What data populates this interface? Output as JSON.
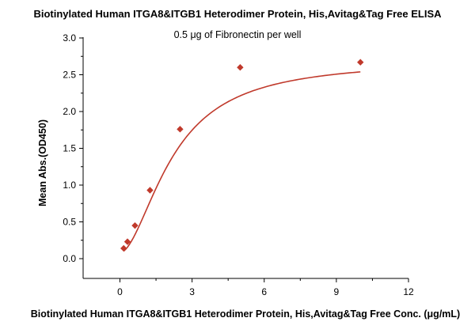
{
  "chart_data": {
    "type": "scatter",
    "title": "Biotinylated Human ITGA8&ITGB1 Heterodimer Protein, His,Avitag&Tag Free ELISA",
    "subtitle": "0.5 μg of Fibronectin per well",
    "xlabel": "Biotinylated Human ITGA8&ITGB1 Heterodimer Protein, His,Avitag&Tag Free Conc. (μg/mL)",
    "ylabel": "Mean Abs.(OD450)",
    "xlim": [
      -1,
      12
    ],
    "ylim": [
      -0.2,
      3.0
    ],
    "xticks": [
      0,
      3,
      6,
      9,
      12
    ],
    "yticks": [
      0.0,
      0.5,
      1.0,
      1.5,
      2.0,
      2.5,
      3.0
    ],
    "grid": false,
    "series": [
      {
        "x": [
          0.156,
          0.313,
          0.625,
          1.25,
          2.5,
          5.0,
          10.0
        ],
        "y": [
          0.14,
          0.23,
          0.45,
          0.93,
          1.76,
          2.6,
          2.67
        ],
        "marker": "diamond",
        "color": "#c0392b",
        "fit": "sigmoid"
      }
    ]
  }
}
